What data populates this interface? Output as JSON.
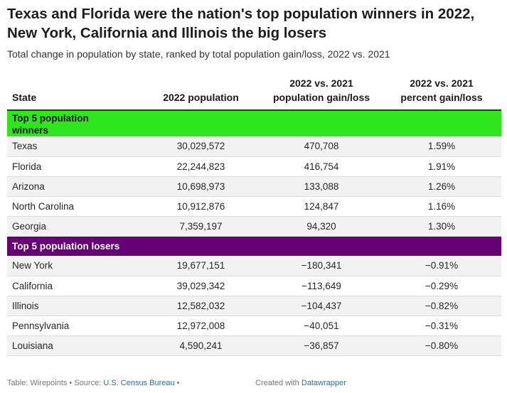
{
  "title": "Texas and Florida were the nation's top population winners in 2022, New York, California and Illinois the big losers",
  "subtitle": "Total change in population by state, ranked by total population gain/loss, 2022 vs. 2021",
  "headers": {
    "state": "State",
    "population": "2022 population",
    "gain_loss_line1": "2022 vs. 2021",
    "gain_loss_line2": "population gain/loss",
    "percent_line1": "2022 vs. 2021",
    "percent_line2": "percent gain/loss"
  },
  "colors": {
    "winners_band": "#2ee51e",
    "losers_band": "#670075"
  },
  "chart_data": {
    "type": "table",
    "columns": [
      "State",
      "2022 population",
      "2022 vs. 2021 population gain/loss",
      "2022 vs. 2021 percent gain/loss"
    ],
    "groups": [
      {
        "label": "Top 5 population winners",
        "rows": [
          [
            "Texas",
            "30,029,572",
            "470,708",
            "1.59%"
          ],
          [
            "Florida",
            "22,244,823",
            "416,754",
            "1.91%"
          ],
          [
            "Arizona",
            "10,698,973",
            "133,088",
            "1.26%"
          ],
          [
            "North Carolina",
            "10,912,876",
            "124,847",
            "1.16%"
          ],
          [
            "Georgia",
            "7,359,197",
            "94,320",
            "1.30%"
          ]
        ]
      },
      {
        "label": "Top 5 population losers",
        "rows": [
          [
            "New York",
            "19,677,151",
            "−180,341",
            "−0.91%"
          ],
          [
            "California",
            "39,029,342",
            "−113,649",
            "−0.29%"
          ],
          [
            "Illinois",
            "12,582,032",
            "−104,437",
            "−0.82%"
          ],
          [
            "Pennsylvania",
            "12,972,008",
            "−40,051",
            "−0.31%"
          ],
          [
            "Louisiana",
            "4,590,241",
            "−36,857",
            "−0.80%"
          ]
        ]
      }
    ]
  },
  "footer": {
    "prefix": "Table: Wirepoints • Source: ",
    "source_link": "U.S. Census Bureau",
    "suffix": " •",
    "created_prefix": "Created with ",
    "created_link": "Datawrapper"
  }
}
